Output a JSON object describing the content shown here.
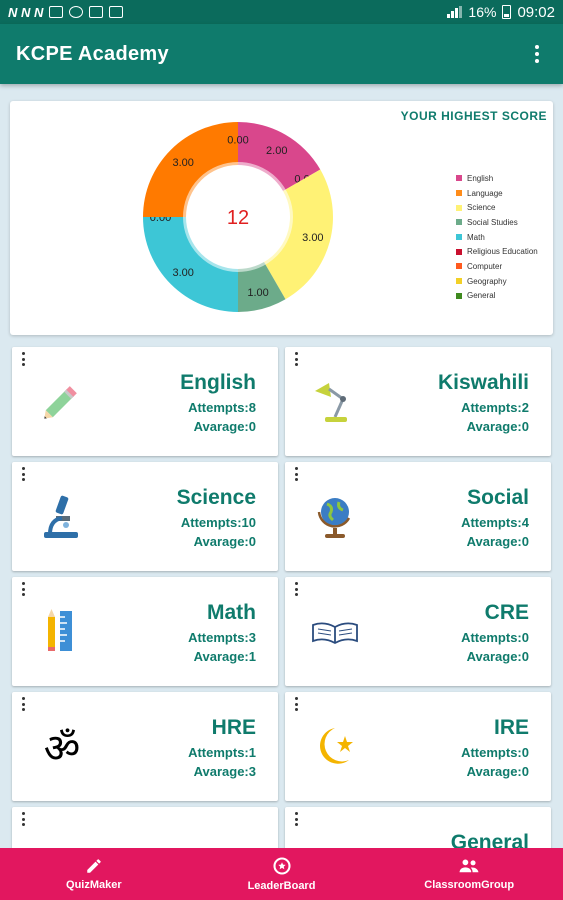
{
  "status_bar": {
    "carrier_icons": "N N N",
    "battery": "16%",
    "time": "09:02"
  },
  "app_bar": {
    "title": "KCPE Academy"
  },
  "score_chart": {
    "title": "YOUR HIGHEST SCORE",
    "center_value": "12"
  },
  "chart_data": {
    "type": "pie",
    "title": "YOUR HIGHEST SCORE",
    "center_label": "12",
    "categories": [
      "English",
      "Language",
      "Science",
      "Social Studies",
      "Math",
      "Religious Education",
      "Computer",
      "Geography",
      "General"
    ],
    "slices_drawn": [
      {
        "label": "2.00",
        "value": 2,
        "color": "#d9478c"
      },
      {
        "label": "0.00",
        "value": 0,
        "color": "#ffe940"
      },
      {
        "label": "3.00",
        "value": 3,
        "color": "#fff275"
      },
      {
        "label": "1.00",
        "value": 1,
        "color": "#6cab8a"
      },
      {
        "label": "3.00",
        "value": 3,
        "color": "#3dc6d6"
      },
      {
        "label": "0.00",
        "value": 0,
        "color": "#3dc6d6"
      },
      {
        "label": "3.00",
        "value": 3,
        "color": "#ff7a00"
      },
      {
        "label": "0.00",
        "value": 0,
        "color": "#f47c20"
      }
    ],
    "legend": [
      {
        "name": "English",
        "color": "#d9478c"
      },
      {
        "name": "Language",
        "color": "#ff8c1a"
      },
      {
        "name": "Science",
        "color": "#fff275"
      },
      {
        "name": "Social Studies",
        "color": "#6cab8a"
      },
      {
        "name": "Math",
        "color": "#3dc6d6"
      },
      {
        "name": "Religious Education",
        "color": "#c9102f"
      },
      {
        "name": "Computer",
        "color": "#ff5a1f"
      },
      {
        "name": "Geography",
        "color": "#f2d027"
      },
      {
        "name": "General",
        "color": "#3f8a1f"
      }
    ],
    "legend_position": "right"
  },
  "subjects": [
    {
      "name": "English",
      "attempts": "Attempts:8",
      "average": "Avarage:0",
      "icon": "pencil-icon"
    },
    {
      "name": "Kiswahili",
      "attempts": "Attempts:2",
      "average": "Avarage:0",
      "icon": "desk-lamp-icon"
    },
    {
      "name": "Science",
      "attempts": "Attempts:10",
      "average": "Avarage:0",
      "icon": "microscope-icon"
    },
    {
      "name": "Social",
      "attempts": "Attempts:4",
      "average": "Avarage:0",
      "icon": "globe-icon"
    },
    {
      "name": "Math",
      "attempts": "Attempts:3",
      "average": "Avarage:1",
      "icon": "pencil-ruler-icon"
    },
    {
      "name": "CRE",
      "attempts": "Attempts:0",
      "average": "Avarage:0",
      "icon": "open-book-icon"
    },
    {
      "name": "HRE",
      "attempts": "Attempts:1",
      "average": "Avarage:3",
      "icon": "om-icon"
    },
    {
      "name": "IRE",
      "attempts": "Attempts:0",
      "average": "Avarage:0",
      "icon": "crescent-star-icon"
    },
    {
      "name": "",
      "attempts": "",
      "average": "",
      "icon": ""
    },
    {
      "name": "General",
      "attempts": "",
      "average": "",
      "icon": ""
    }
  ],
  "bottom_nav": [
    {
      "label": "QuizMaker",
      "icon": "pencil-icon"
    },
    {
      "label": "LeaderBoard",
      "icon": "medal-icon"
    },
    {
      "label": "ClassroomGroup",
      "icon": "group-icon"
    }
  ]
}
